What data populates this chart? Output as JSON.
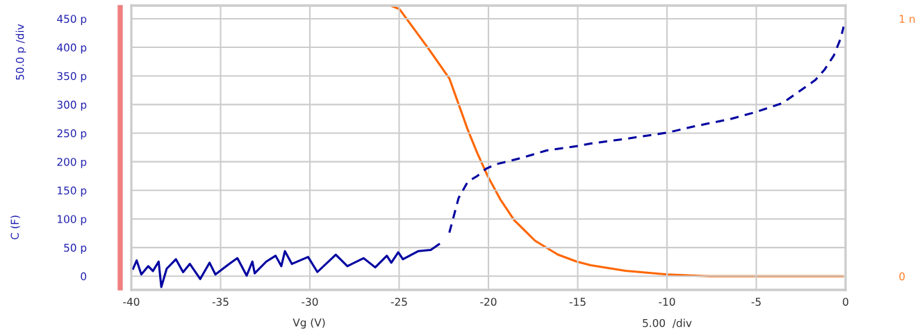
{
  "chart_data": {
    "type": "line",
    "xlabel": "Vg (V)",
    "ylabel": "C (F)",
    "annotations": [
      "50.0 p /div",
      "5.00  /div"
    ],
    "xlim": [
      -40,
      0
    ],
    "xticks": [
      -40,
      -35,
      -30,
      -25,
      -20,
      -15,
      -10,
      -5,
      0
    ],
    "ylim": [
      -24,
      473
    ],
    "yticks": [
      {
        "value": 0,
        "label": "0"
      },
      {
        "value": 50,
        "label": "50 p"
      },
      {
        "value": 100,
        "label": "100 p"
      },
      {
        "value": 150,
        "label": "150 p"
      },
      {
        "value": 200,
        "label": "200 p"
      },
      {
        "value": 250,
        "label": "250 p"
      },
      {
        "value": 300,
        "label": "300 p"
      },
      {
        "value": 350,
        "label": "350 p"
      },
      {
        "value": 400,
        "label": "400 p"
      },
      {
        "value": 450,
        "label": "450 p"
      }
    ],
    "y2lim": [
      -0.053,
      1.051
    ],
    "y2ticks": [
      {
        "value": 0,
        "label": "0"
      },
      {
        "value": 1,
        "label": "1 n"
      }
    ],
    "grid": true,
    "legend": false,
    "series": [
      {
        "color": "#0000a0",
        "line_style": "solid",
        "x": [
          -39.9,
          -39.7,
          -39.44,
          -39.05,
          -38.79,
          -38.47,
          -38.32,
          -38.02,
          -37.5,
          -37.1,
          -36.72,
          -36.14,
          -35.62,
          -35.29,
          -34.51,
          -34.06,
          -33.54,
          -33.22,
          -33.09,
          -32.44,
          -31.92,
          -31.6,
          -31.4,
          -31.01,
          -30.1,
          -29.58,
          -28.55,
          -27.9,
          -26.99,
          -26.34,
          -25.69,
          -25.44,
          -25.05,
          -24.79,
          -23.94,
          -23.23,
          -22.77
        ],
        "values": [
          13,
          27.5,
          3,
          17.5,
          9,
          25.5,
          -19,
          13,
          29.6,
          7,
          21.5,
          -5,
          23.5,
          3,
          21.5,
          31.5,
          1,
          25.5,
          5,
          25.5,
          35.7,
          17.5,
          43.7,
          21.5,
          33.6,
          7.3,
          37.6,
          17.5,
          31.5,
          15.4,
          35.7,
          23.5,
          41.7,
          29.6,
          43.7,
          45.8,
          55.8
        ]
      },
      {
        "color": "#0000a0",
        "line_style": "dashed",
        "x": [
          -22.19,
          -21.67,
          -21.16,
          -20.63,
          -20.12,
          -19.6,
          -18.05,
          -16.75,
          -14.93,
          -14.28,
          -12.33,
          -10,
          -8.31,
          -6.5,
          -5.07,
          -3.52,
          -2.6,
          -1.69,
          -1.17,
          -0.66,
          -0.27,
          -0.11
        ],
        "values": [
          76,
          136.8,
          165,
          175,
          188,
          195.4,
          207.5,
          219.7,
          227.8,
          231.8,
          240,
          250.8,
          263,
          274.3,
          286.4,
          302.7,
          322.8,
          343,
          361.3,
          385.6,
          415.9,
          436
        ]
      },
      {
        "color": "#ff6600",
        "axis": "y2",
        "line_style": "solid",
        "x": [
          -25.45,
          -24.98,
          -23.36,
          -22.19,
          -21.67,
          -21.16,
          -20.63,
          -20.05,
          -19.34,
          -18.56,
          -17.39,
          -16.11,
          -15.06,
          -14.28,
          -12.33,
          -10,
          -7.6,
          -0.16
        ],
        "values": [
          1.05,
          1.037,
          0.884,
          0.768,
          0.668,
          0.569,
          0.479,
          0.39,
          0.299,
          0.218,
          0.138,
          0.084,
          0.057,
          0.043,
          0.021,
          0.007,
          0,
          0
        ]
      }
    ]
  }
}
